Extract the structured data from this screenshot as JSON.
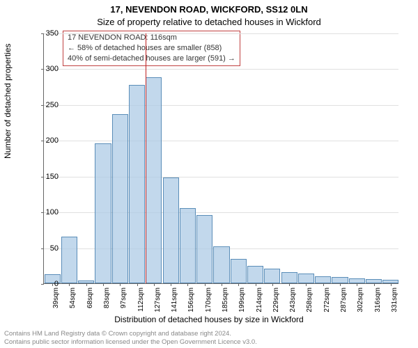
{
  "title_line1": "17, NEVENDON ROAD, WICKFORD, SS12 0LN",
  "title_line2": "Size of property relative to detached houses in Wickford",
  "infobox": {
    "line1": "17 NEVENDON ROAD: 116sqm",
    "line2": "← 58% of detached houses are smaller (858)",
    "line3": "40% of semi-detached houses are larger (591) →"
  },
  "ylabel": "Number of detached properties",
  "xlabel": "Distribution of detached houses by size in Wickford",
  "footer_line1": "Contains HM Land Registry data © Crown copyright and database right 2024.",
  "footer_line2": "Contains public sector information licensed under the Open Government Licence v3.0.",
  "chart": {
    "type": "histogram",
    "ylim": [
      0,
      350
    ],
    "ytick_step": 50,
    "yticks": [
      0,
      50,
      100,
      150,
      200,
      250,
      300,
      350
    ],
    "xticks": [
      "39sqm",
      "54sqm",
      "68sqm",
      "83sqm",
      "97sqm",
      "112sqm",
      "127sqm",
      "141sqm",
      "156sqm",
      "170sqm",
      "185sqm",
      "199sqm",
      "214sqm",
      "229sqm",
      "243sqm",
      "258sqm",
      "272sqm",
      "287sqm",
      "302sqm",
      "316sqm",
      "331sqm"
    ],
    "values": [
      13,
      65,
      4,
      195,
      236,
      277,
      288,
      148,
      105,
      95,
      52,
      34,
      24,
      20,
      16,
      14,
      10,
      9,
      7,
      6,
      5
    ],
    "bar_fill": "rgba(173,203,230,0.75)",
    "bar_stroke": "#5a8db8",
    "grid_color": "#e0e0e0",
    "axis_color": "#666666",
    "marker_color": "#c02020",
    "marker_index_after": 5,
    "background_color": "#ffffff",
    "title_fontsize": 13,
    "label_fontsize": 12,
    "tick_fontsize": 11,
    "xtick_fontsize": 10
  }
}
